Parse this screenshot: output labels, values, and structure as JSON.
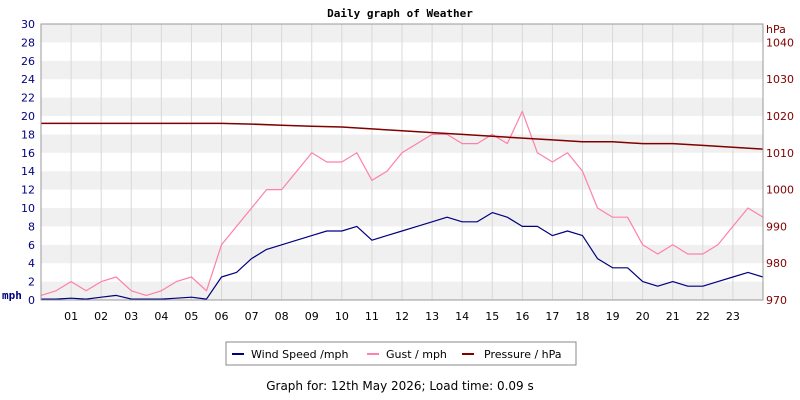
{
  "chart_data": {
    "type": "line",
    "title": "Daily graph of Weather",
    "y_left": {
      "label": "mph",
      "min": 0,
      "max": 30,
      "ticks": [
        "0",
        "2",
        "4",
        "6",
        "8",
        "10",
        "12",
        "14",
        "16",
        "18",
        "20",
        "22",
        "24",
        "26",
        "28",
        "30"
      ]
    },
    "y_right": {
      "label": "hPa",
      "min": 970,
      "max": 1045,
      "ticks": [
        "970",
        "980",
        "990",
        "1000",
        "1010",
        "1020",
        "1030",
        "1040"
      ]
    },
    "x_axis": {
      "min": 0,
      "max": 24,
      "ticks": [
        "01",
        "02",
        "03",
        "04",
        "05",
        "06",
        "07",
        "08",
        "09",
        "10",
        "11",
        "12",
        "13",
        "14",
        "15",
        "16",
        "17",
        "18",
        "19",
        "20",
        "21",
        "22",
        "23"
      ]
    },
    "grid": true,
    "legend": {
      "placement": "bottom",
      "entries": [
        {
          "label": "Wind Speed /mph",
          "color": "#000080"
        },
        {
          "label": "Gust / mph",
          "color": "#ff80a8"
        },
        {
          "label": "Pressure / hPa",
          "color": "#800000"
        }
      ]
    },
    "series": [
      {
        "name": "Wind Speed /mph",
        "color": "#000080",
        "axis": "left",
        "x": [
          0,
          0.5,
          1,
          1.5,
          2,
          2.5,
          3,
          3.5,
          4,
          4.5,
          5,
          5.5,
          6,
          6.5,
          7,
          7.5,
          8,
          8.5,
          9,
          9.5,
          10,
          10.5,
          11,
          11.5,
          12,
          12.5,
          13,
          13.5,
          14,
          14.5,
          15,
          15.5,
          16,
          16.5,
          17,
          17.5,
          18,
          18.5,
          19,
          19.5,
          20,
          20.5,
          21,
          21.5,
          22,
          22.5,
          23,
          23.5,
          24
        ],
        "values": [
          0.1,
          0.1,
          0.2,
          0.1,
          0.3,
          0.5,
          0.1,
          0.1,
          0.1,
          0.2,
          0.3,
          0.1,
          2.5,
          3.0,
          4.5,
          5.5,
          6.0,
          6.5,
          7.0,
          7.5,
          7.5,
          8.0,
          6.5,
          7.0,
          7.5,
          8.0,
          8.5,
          9.0,
          8.5,
          8.5,
          9.5,
          9.0,
          8.0,
          8.0,
          7.0,
          7.5,
          7.0,
          4.5,
          3.5,
          3.5,
          2.0,
          1.5,
          2.0,
          1.5,
          1.5,
          2.0,
          2.5,
          3.0,
          2.5
        ]
      },
      {
        "name": "Gust / mph",
        "color": "#ff80a8",
        "axis": "left",
        "x": [
          0,
          0.5,
          1,
          1.5,
          2,
          2.5,
          3,
          3.5,
          4,
          4.5,
          5,
          5.5,
          6,
          6.5,
          7,
          7.5,
          8,
          8.5,
          9,
          9.5,
          10,
          10.5,
          11,
          11.5,
          12,
          12.5,
          13,
          13.5,
          14,
          14.5,
          15,
          15.5,
          16,
          16.5,
          17,
          17.5,
          18,
          18.5,
          19,
          19.5,
          20,
          20.5,
          21,
          21.5,
          22,
          22.5,
          23,
          23.5,
          24
        ],
        "values": [
          0.5,
          1.0,
          2.0,
          1.0,
          2.0,
          2.5,
          1.0,
          0.5,
          1.0,
          2.0,
          2.5,
          1.0,
          6.0,
          8.0,
          10.0,
          12.0,
          12.0,
          14.0,
          16.0,
          15.0,
          15.0,
          16.0,
          13.0,
          14.0,
          16.0,
          17.0,
          18.0,
          18.0,
          17.0,
          17.0,
          18.0,
          17.0,
          20.5,
          16.0,
          15.0,
          16.0,
          14.0,
          10.0,
          9.0,
          9.0,
          6.0,
          5.0,
          6.0,
          5.0,
          5.0,
          6.0,
          8.0,
          10.0,
          9.0
        ]
      },
      {
        "name": "Pressure / hPa",
        "color": "#800000",
        "axis": "right",
        "x": [
          0,
          1,
          2,
          3,
          4,
          5,
          6,
          7,
          8,
          9,
          10,
          11,
          12,
          13,
          14,
          15,
          16,
          17,
          18,
          19,
          20,
          21,
          22,
          23,
          24
        ],
        "values": [
          1018,
          1018,
          1018,
          1018,
          1018,
          1018,
          1018,
          1017.8,
          1017.5,
          1017.2,
          1017,
          1016.5,
          1016,
          1015.5,
          1015,
          1014.5,
          1014,
          1013.5,
          1013,
          1013,
          1012.5,
          1012.5,
          1012,
          1011.5,
          1011
        ]
      }
    ]
  },
  "footer": {
    "text": "Graph for: 12th May 2026; Load time: 0.09 s"
  }
}
